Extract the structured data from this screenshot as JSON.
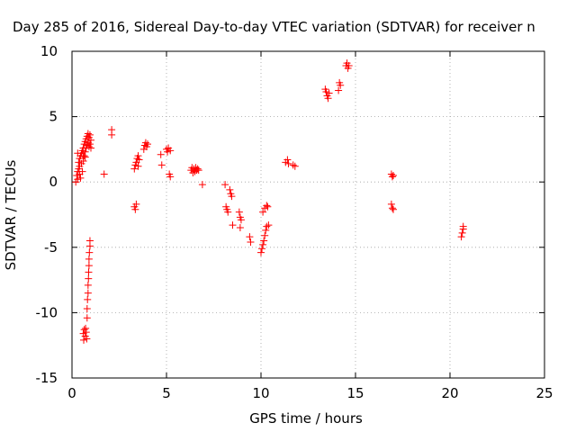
{
  "chart_data": {
    "type": "scatter",
    "title": "Day 285 of 2016, Sidereal Day-to-day VTEC variation (SDTVAR) for receiver n",
    "xlabel": "GPS time / hours",
    "ylabel": "SDTVAR / TECUs",
    "xlim": [
      0,
      25
    ],
    "ylim": [
      -15,
      10
    ],
    "xticks": [
      0,
      5,
      10,
      15,
      20,
      25
    ],
    "yticks": [
      -15,
      -10,
      -5,
      0,
      5,
      10
    ],
    "grid": true,
    "marker": "+",
    "color": "#ff0000",
    "series": [
      {
        "name": "SDTVAR",
        "points": [
          [
            0.2,
            0.0
          ],
          [
            0.25,
            0.5
          ],
          [
            0.3,
            0.8
          ],
          [
            0.3,
            0.2
          ],
          [
            0.35,
            1.0
          ],
          [
            0.35,
            1.5
          ],
          [
            0.4,
            0.6
          ],
          [
            0.4,
            1.8
          ],
          [
            0.45,
            0.3
          ],
          [
            0.45,
            2.0
          ],
          [
            0.5,
            1.4
          ],
          [
            0.5,
            2.2
          ],
          [
            0.55,
            0.8
          ],
          [
            0.55,
            2.4
          ],
          [
            0.6,
            1.6
          ],
          [
            0.6,
            2.6
          ],
          [
            0.65,
            2.0
          ],
          [
            0.65,
            2.9
          ],
          [
            0.7,
            2.3
          ],
          [
            0.7,
            3.1
          ],
          [
            0.75,
            2.6
          ],
          [
            0.75,
            3.3
          ],
          [
            0.8,
            2.8
          ],
          [
            0.8,
            3.5
          ],
          [
            0.85,
            3.0
          ],
          [
            0.85,
            3.7
          ],
          [
            0.9,
            2.7
          ],
          [
            0.9,
            3.4
          ],
          [
            0.95,
            2.9
          ],
          [
            0.95,
            3.6
          ],
          [
            1.0,
            2.6
          ],
          [
            1.0,
            3.2
          ],
          [
            0.3,
            2.2
          ],
          [
            0.4,
            1.2
          ],
          [
            0.6,
            2.0
          ],
          [
            0.7,
            1.9
          ],
          [
            0.6,
            -11.6
          ],
          [
            0.62,
            -12.1
          ],
          [
            0.65,
            -11.3
          ],
          [
            0.7,
            -11.8
          ],
          [
            0.72,
            -11.2
          ],
          [
            0.75,
            -11.5
          ],
          [
            0.78,
            -12.0
          ],
          [
            0.8,
            -10.4
          ],
          [
            0.8,
            -9.7
          ],
          [
            0.82,
            -9.0
          ],
          [
            0.85,
            -8.5
          ],
          [
            0.85,
            -7.9
          ],
          [
            0.87,
            -7.4
          ],
          [
            0.88,
            -6.9
          ],
          [
            0.9,
            -6.4
          ],
          [
            0.9,
            -5.9
          ],
          [
            0.92,
            -5.4
          ],
          [
            0.95,
            -4.9
          ],
          [
            0.95,
            -4.5
          ],
          [
            1.7,
            0.6
          ],
          [
            2.1,
            4.0
          ],
          [
            2.1,
            3.6
          ],
          [
            3.3,
            -1.9
          ],
          [
            3.35,
            -2.1
          ],
          [
            3.4,
            -1.7
          ],
          [
            3.3,
            1.0
          ],
          [
            3.35,
            1.3
          ],
          [
            3.4,
            1.5
          ],
          [
            3.45,
            1.8
          ],
          [
            3.5,
            2.0
          ],
          [
            3.55,
            1.7
          ],
          [
            3.5,
            1.2
          ],
          [
            3.8,
            2.5
          ],
          [
            3.85,
            2.8
          ],
          [
            3.9,
            3.0
          ],
          [
            3.95,
            2.7
          ],
          [
            4.0,
            2.9
          ],
          [
            4.7,
            2.1
          ],
          [
            4.75,
            1.3
          ],
          [
            5.0,
            2.5
          ],
          [
            5.05,
            2.3
          ],
          [
            5.1,
            2.6
          ],
          [
            5.15,
            0.6
          ],
          [
            5.2,
            0.4
          ],
          [
            5.2,
            2.4
          ],
          [
            6.3,
            0.9
          ],
          [
            6.35,
            1.1
          ],
          [
            6.4,
            0.7
          ],
          [
            6.45,
            1.0
          ],
          [
            6.5,
            0.8
          ],
          [
            6.55,
            1.1
          ],
          [
            6.6,
            0.9
          ],
          [
            6.65,
            1.0
          ],
          [
            6.7,
            0.9
          ],
          [
            6.9,
            -0.2
          ],
          [
            8.1,
            -0.2
          ],
          [
            8.15,
            -1.9
          ],
          [
            8.2,
            -2.1
          ],
          [
            8.25,
            -2.3
          ],
          [
            8.35,
            -0.6
          ],
          [
            8.4,
            -0.9
          ],
          [
            8.45,
            -1.1
          ],
          [
            8.5,
            -3.3
          ],
          [
            8.85,
            -2.3
          ],
          [
            8.9,
            -2.7
          ],
          [
            8.95,
            -2.9
          ],
          [
            8.9,
            -3.5
          ],
          [
            9.4,
            -4.2
          ],
          [
            9.45,
            -4.6
          ],
          [
            10.0,
            -5.4
          ],
          [
            10.05,
            -5.1
          ],
          [
            10.1,
            -4.8
          ],
          [
            10.1,
            -2.3
          ],
          [
            10.15,
            -4.5
          ],
          [
            10.2,
            -4.1
          ],
          [
            10.2,
            -2.0
          ],
          [
            10.25,
            -3.7
          ],
          [
            10.3,
            -1.8
          ],
          [
            10.3,
            -3.4
          ],
          [
            10.35,
            -1.9
          ],
          [
            10.4,
            -3.3
          ],
          [
            11.3,
            1.5
          ],
          [
            11.4,
            1.7
          ],
          [
            11.45,
            1.4
          ],
          [
            11.7,
            1.3
          ],
          [
            11.8,
            1.2
          ],
          [
            13.4,
            7.1
          ],
          [
            13.45,
            6.9
          ],
          [
            13.5,
            6.6
          ],
          [
            13.55,
            6.4
          ],
          [
            13.6,
            6.8
          ],
          [
            14.1,
            7.0
          ],
          [
            14.15,
            7.6
          ],
          [
            14.2,
            7.4
          ],
          [
            14.5,
            8.9
          ],
          [
            14.55,
            9.1
          ],
          [
            14.6,
            8.7
          ],
          [
            14.65,
            8.9
          ],
          [
            16.9,
            0.6
          ],
          [
            16.95,
            0.4
          ],
          [
            17.0,
            0.5
          ],
          [
            16.9,
            -1.7
          ],
          [
            16.95,
            -2.0
          ],
          [
            17.0,
            -2.1
          ],
          [
            20.6,
            -4.2
          ],
          [
            20.65,
            -3.9
          ],
          [
            20.7,
            -3.6
          ],
          [
            20.7,
            -3.4
          ]
        ]
      }
    ]
  }
}
